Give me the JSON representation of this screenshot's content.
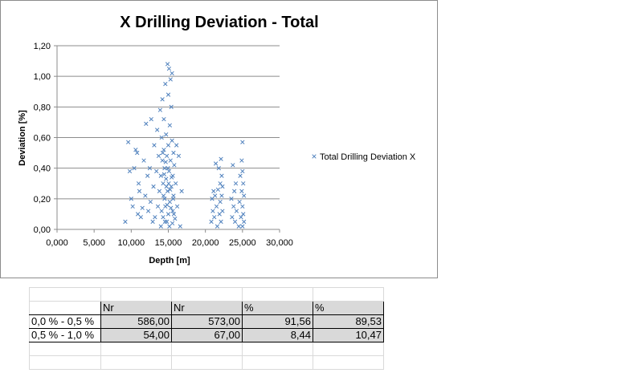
{
  "chart_data": {
    "type": "scatter",
    "title": "X Drilling Deviation - Total",
    "xlabel": "Depth [m]",
    "ylabel": "Deviation [%]",
    "xlim": [
      0,
      30000
    ],
    "ylim": [
      0,
      1.2
    ],
    "x_ticks": [
      "0,000",
      "5,000",
      "10,000",
      "15,000",
      "20,000",
      "25,000",
      "30,000"
    ],
    "y_ticks": [
      "0,00",
      "0,20",
      "0,40",
      "0,60",
      "0,80",
      "1,00",
      "1,20"
    ],
    "grid": "horizontal",
    "legend_position": "right",
    "marker": "x",
    "series": [
      {
        "name": "Total Drilling Deviation X",
        "color": "#4f81bd",
        "points": [
          [
            9200,
            0.05
          ],
          [
            9600,
            0.57
          ],
          [
            9800,
            0.38
          ],
          [
            10000,
            0.2
          ],
          [
            10200,
            0.15
          ],
          [
            10400,
            0.4
          ],
          [
            10600,
            0.52
          ],
          [
            10800,
            0.5
          ],
          [
            10900,
            0.1
          ],
          [
            11000,
            0.3
          ],
          [
            11100,
            0.25
          ],
          [
            11300,
            0.08
          ],
          [
            11500,
            0.14
          ],
          [
            11700,
            0.45
          ],
          [
            11900,
            0.22
          ],
          [
            12000,
            0.69
          ],
          [
            12200,
            0.35
          ],
          [
            12300,
            0.12
          ],
          [
            12500,
            0.4
          ],
          [
            12600,
            0.18
          ],
          [
            12700,
            0.72
          ],
          [
            12900,
            0.05
          ],
          [
            13000,
            0.28
          ],
          [
            13100,
            0.55
          ],
          [
            13200,
            0.08
          ],
          [
            13400,
            0.38
          ],
          [
            13500,
            0.65
          ],
          [
            13600,
            0.15
          ],
          [
            13700,
            0.48
          ],
          [
            13800,
            0.25
          ],
          [
            13900,
            0.78
          ],
          [
            14000,
            0.02
          ],
          [
            14000,
            0.35
          ],
          [
            14100,
            0.6
          ],
          [
            14100,
            0.12
          ],
          [
            14200,
            0.85
          ],
          [
            14200,
            0.45
          ],
          [
            14300,
            0.3
          ],
          [
            14300,
            0.08
          ],
          [
            14400,
            0.52
          ],
          [
            14400,
            0.72
          ],
          [
            14500,
            0.2
          ],
          [
            14500,
            0.4
          ],
          [
            14600,
            0.95
          ],
          [
            14600,
            0.15
          ],
          [
            14700,
            0.62
          ],
          [
            14700,
            0.33
          ],
          [
            14800,
            0.05
          ],
          [
            14800,
            0.48
          ],
          [
            14900,
            1.08
          ],
          [
            14900,
            0.25
          ],
          [
            15000,
            0.88
          ],
          [
            15000,
            0.55
          ],
          [
            15000,
            0.1
          ],
          [
            15100,
            1.05
          ],
          [
            15100,
            0.38
          ],
          [
            15200,
            0.68
          ],
          [
            15200,
            0.18
          ],
          [
            15300,
            0.98
          ],
          [
            15300,
            0.45
          ],
          [
            15400,
            0.8
          ],
          [
            15400,
            0.28
          ],
          [
            15500,
            1.02
          ],
          [
            15500,
            0.58
          ],
          [
            15600,
            0.35
          ],
          [
            15600,
            0.12
          ],
          [
            15700,
            0.5
          ],
          [
            15700,
            0.22
          ],
          [
            15800,
            0.42
          ],
          [
            15900,
            0.07
          ],
          [
            16000,
            0.3
          ],
          [
            16100,
            0.55
          ],
          [
            16200,
            0.15
          ],
          [
            16400,
            0.48
          ],
          [
            16600,
            0.02
          ],
          [
            16800,
            0.25
          ],
          [
            14250,
            0.5
          ],
          [
            14350,
            0.22
          ],
          [
            14450,
            0.36
          ],
          [
            14550,
            0.05
          ],
          [
            14650,
            0.44
          ],
          [
            14750,
            0.28
          ],
          [
            14850,
            0.16
          ],
          [
            14950,
            0.4
          ],
          [
            15050,
            0.3
          ],
          [
            15150,
            0.02
          ],
          [
            15250,
            0.26
          ],
          [
            15350,
            0.14
          ],
          [
            15450,
            0.34
          ],
          [
            15550,
            0.04
          ],
          [
            15650,
            0.2
          ],
          [
            15750,
            0.1
          ],
          [
            20800,
            0.05
          ],
          [
            20900,
            0.2
          ],
          [
            21000,
            0.12
          ],
          [
            21100,
            0.25
          ],
          [
            21200,
            0.08
          ],
          [
            21300,
            0.22
          ],
          [
            21400,
            0.43
          ],
          [
            21500,
            0.15
          ],
          [
            21600,
            0.02
          ],
          [
            21700,
            0.26
          ],
          [
            21800,
            0.4
          ],
          [
            21900,
            0.1
          ],
          [
            22000,
            0.3
          ],
          [
            22000,
            0.18
          ],
          [
            22100,
            0.46
          ],
          [
            22100,
            0.05
          ],
          [
            22200,
            0.35
          ],
          [
            22200,
            0.22
          ],
          [
            22300,
            0.12
          ],
          [
            22300,
            0.28
          ],
          [
            23500,
            0.2
          ],
          [
            23600,
            0.08
          ],
          [
            23700,
            0.42
          ],
          [
            23800,
            0.15
          ],
          [
            23900,
            0.25
          ],
          [
            24000,
            0.05
          ],
          [
            24100,
            0.3
          ],
          [
            24200,
            0.12
          ],
          [
            24500,
            0.02
          ],
          [
            24600,
            0.18
          ],
          [
            24700,
            0.35
          ],
          [
            24800,
            0.08
          ],
          [
            24900,
            0.45
          ],
          [
            24900,
            0.25
          ],
          [
            25000,
            0.57
          ],
          [
            25000,
            0.38
          ],
          [
            25000,
            0.15
          ],
          [
            25000,
            0.02
          ],
          [
            25100,
            0.3
          ],
          [
            25100,
            0.1
          ],
          [
            25200,
            0.22
          ],
          [
            25200,
            0.05
          ]
        ]
      }
    ]
  },
  "table": {
    "header": [
      "",
      "Nr",
      "Nr",
      "%",
      "%"
    ],
    "rows": [
      [
        "0,0 % - 0,5 %",
        "586,00",
        "573,00",
        "91,56",
        "89,53"
      ],
      [
        "0,5 % - 1,0 %",
        "54,00",
        "67,00",
        "8,44",
        "10,47"
      ]
    ]
  }
}
